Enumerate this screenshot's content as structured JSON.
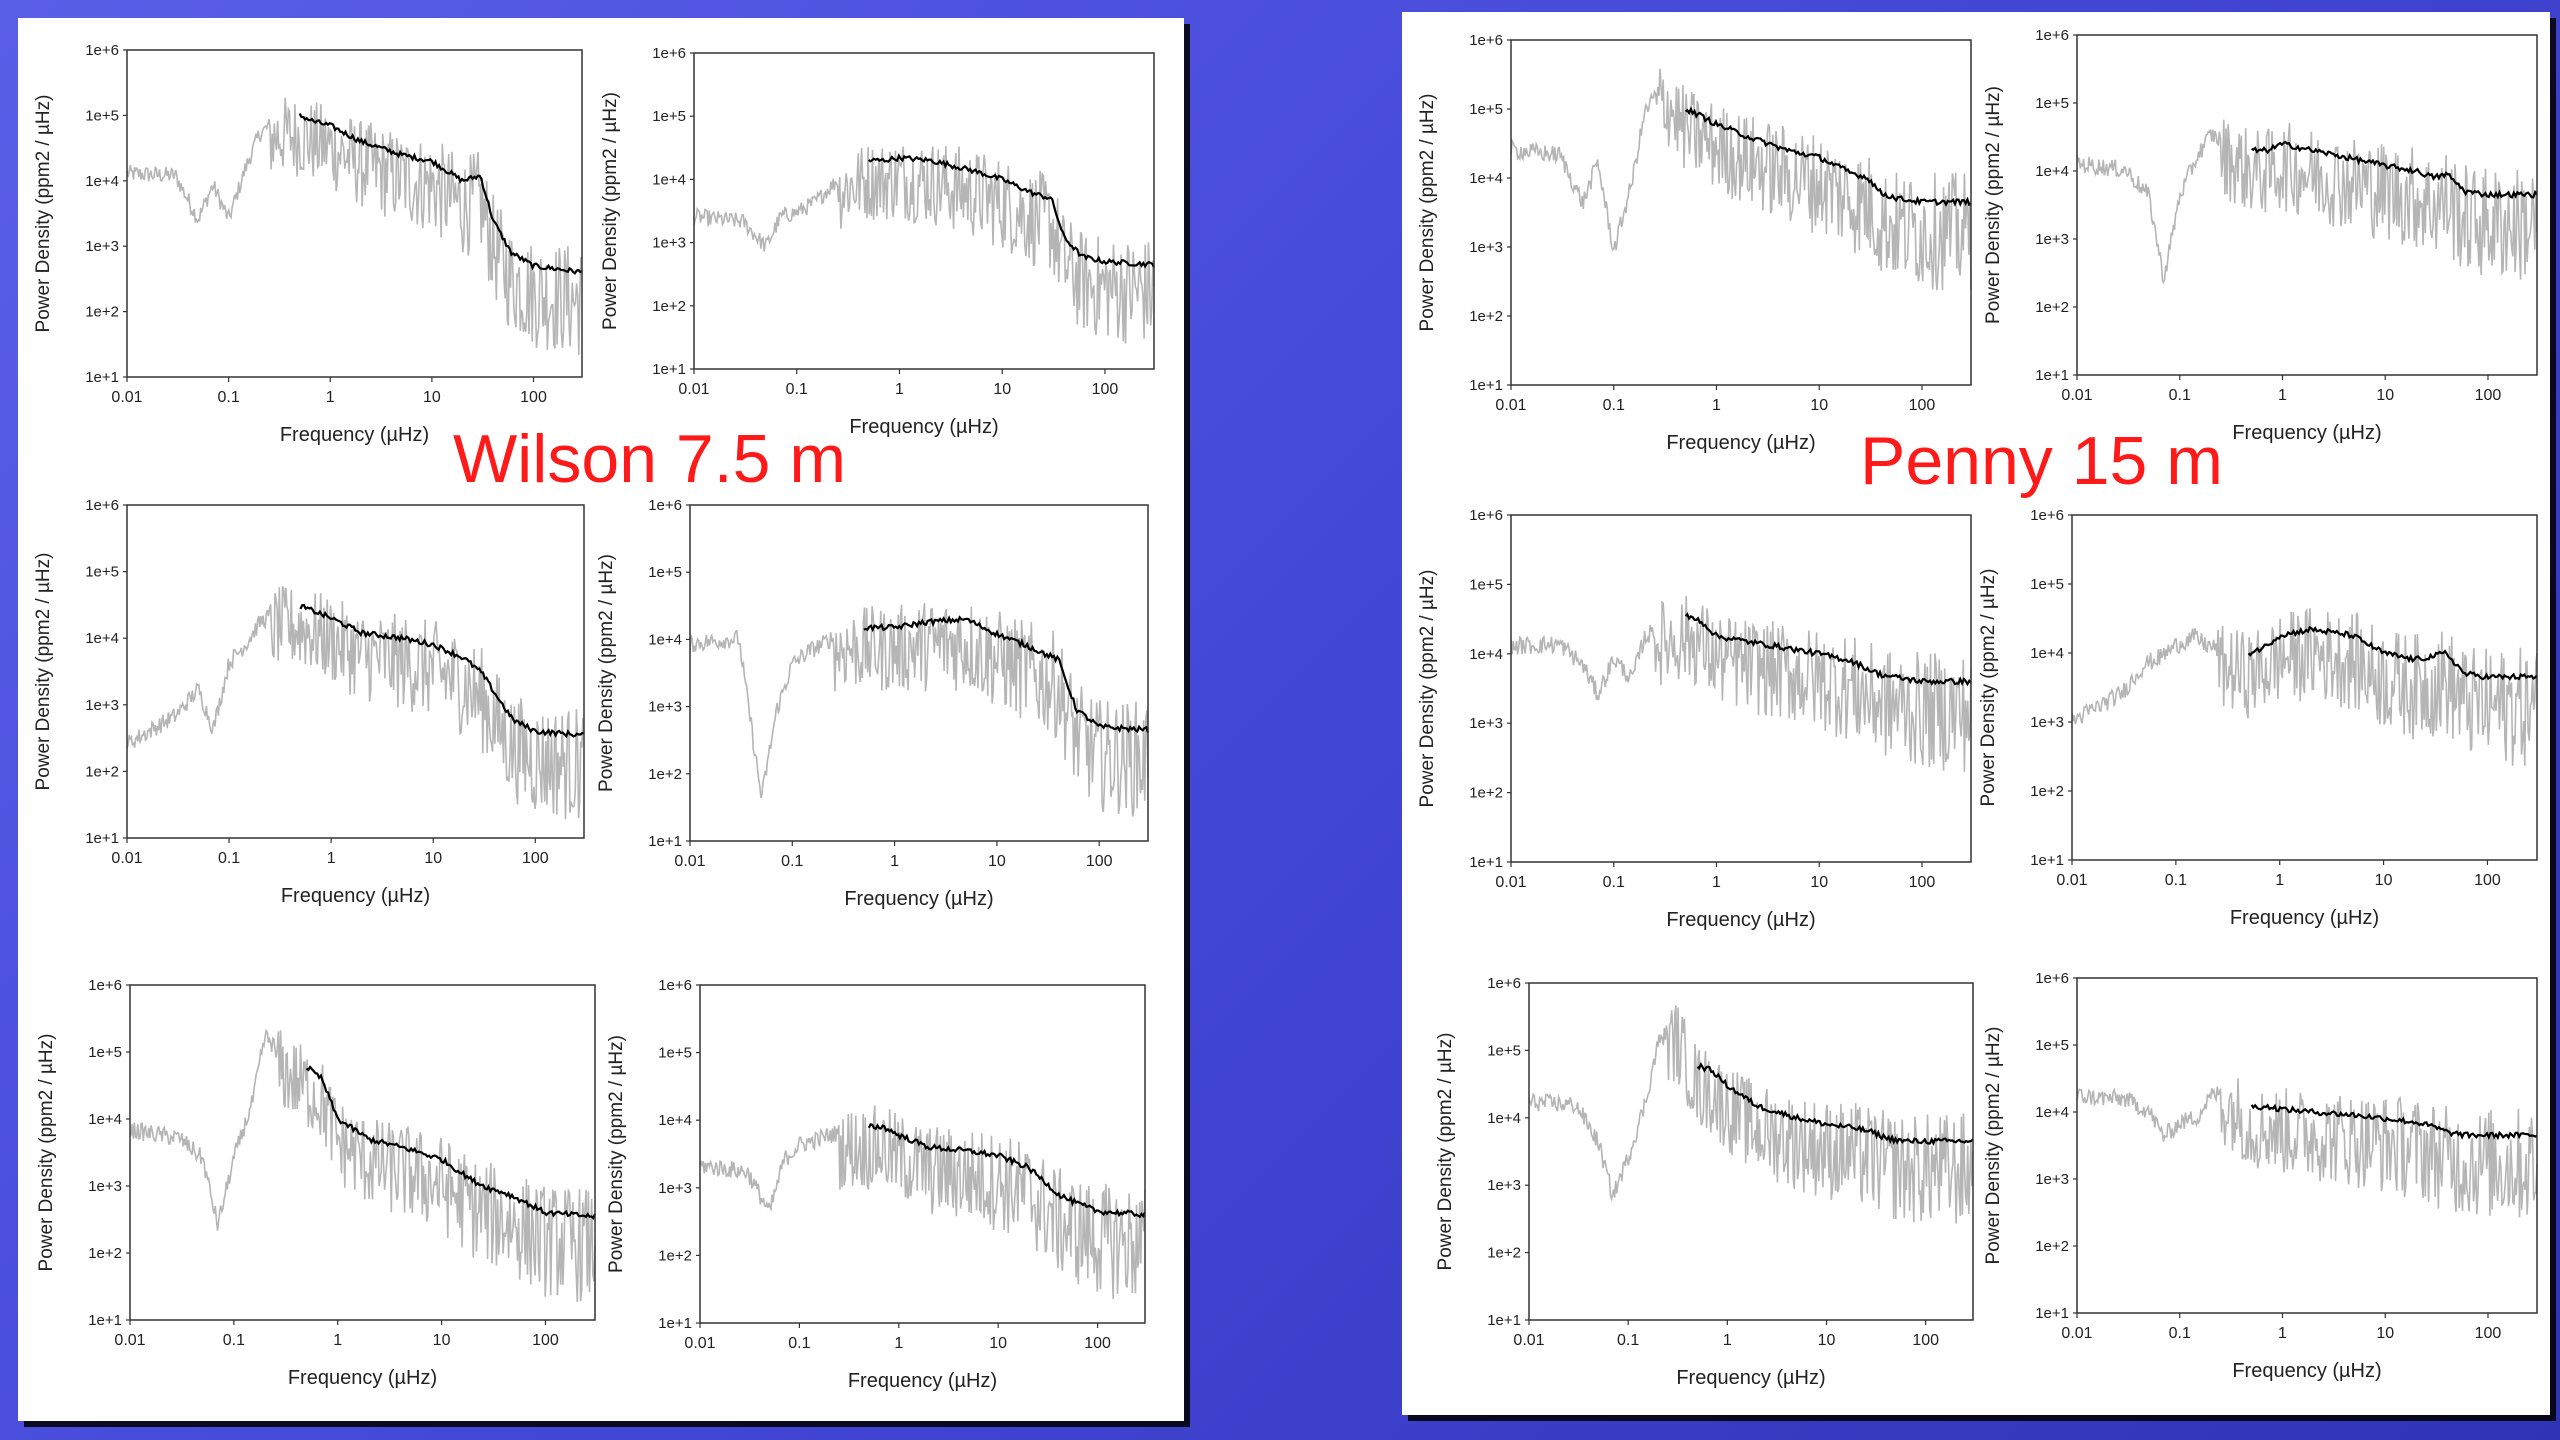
{
  "colors": {
    "background": "#4a4fe0",
    "panel": "#ffffff",
    "title": "#ff1a1a",
    "raw_spectrum": "#b5b5b5",
    "smoothed": "#000000"
  },
  "panels": [
    {
      "title": "Wilson 7.5 m"
    },
    {
      "title": "Penny 15 m"
    }
  ],
  "chart_data": [
    {
      "type": "line",
      "panel": "Wilson 7.5 m",
      "xlabel": "Frequency (µHz)",
      "ylabel": "Power Density (ppm2 / µHz)",
      "x_scale": "log",
      "y_scale": "log",
      "xlim": [
        0.01,
        300
      ],
      "ylim": [
        10.0,
        1000000.0
      ],
      "xticks": [
        "0.01",
        "0.1",
        "1",
        "10",
        "100"
      ],
      "yticks": [
        "1e+1",
        "1e+2",
        "1e+3",
        "1e+4",
        "1e+5",
        "1e+6"
      ],
      "series": [
        {
          "x": [
            0.01,
            0.03,
            0.05,
            0.07,
            0.1,
            0.15,
            0.2,
            0.3,
            0.5,
            0.7,
            1,
            2,
            5,
            10,
            20,
            30,
            40,
            60,
            100,
            300
          ],
          "values": [
            15000,
            14000,
            3000,
            10000,
            3000,
            20000,
            60000,
            100000,
            100000,
            80000,
            70000,
            40000,
            25000,
            20000,
            10000,
            12000,
            2500,
            800,
            500,
            400
          ]
        }
      ]
    },
    {
      "type": "line",
      "panel": "Wilson 7.5 m",
      "xlabel": "Frequency (µHz)",
      "ylabel": "Power Density (ppm2 / µHz)",
      "x_scale": "log",
      "y_scale": "log",
      "xlim": [
        0.01,
        300
      ],
      "ylim": [
        10.0,
        1000000.0
      ],
      "xticks": [
        "0.01",
        "0.1",
        "1",
        "10",
        "100"
      ],
      "yticks": [
        "1e+1",
        "1e+2",
        "1e+3",
        "1e+4",
        "1e+5",
        "1e+6"
      ],
      "series": [
        {
          "x": [
            0.01,
            0.03,
            0.05,
            0.07,
            0.1,
            0.15,
            0.2,
            0.3,
            0.5,
            0.7,
            1,
            2,
            5,
            10,
            20,
            30,
            40,
            60,
            100,
            300
          ],
          "values": [
            3000,
            2500,
            1000,
            3000,
            3500,
            5000,
            8000,
            15000,
            20000,
            20000,
            22000,
            20000,
            14000,
            10000,
            6000,
            5000,
            1200,
            600,
            500,
            450
          ]
        }
      ]
    },
    {
      "type": "line",
      "panel": "Wilson 7.5 m",
      "xlabel": "Frequency (µHz)",
      "ylabel": "Power Density (ppm2 / µHz)",
      "x_scale": "log",
      "y_scale": "log",
      "xlim": [
        0.01,
        300
      ],
      "ylim": [
        10.0,
        1000000.0
      ],
      "xticks": [
        "0.01",
        "0.1",
        "1",
        "10",
        "100"
      ],
      "yticks": [
        "1e+1",
        "1e+2",
        "1e+3",
        "1e+4",
        "1e+5",
        "1e+6"
      ],
      "series": [
        {
          "x": [
            0.01,
            0.03,
            0.05,
            0.07,
            0.1,
            0.15,
            0.2,
            0.3,
            0.5,
            0.7,
            1,
            2,
            5,
            10,
            20,
            30,
            40,
            60,
            100,
            300
          ],
          "values": [
            300,
            800,
            2000,
            500,
            5000,
            10000,
            20000,
            30000,
            30000,
            25000,
            20000,
            12000,
            10000,
            8000,
            5000,
            3000,
            1500,
            600,
            400,
            350
          ]
        }
      ]
    },
    {
      "type": "line",
      "panel": "Wilson 7.5 m",
      "xlabel": "Frequency (µHz)",
      "ylabel": "Power Density (ppm2 / µHz)",
      "x_scale": "log",
      "y_scale": "log",
      "xlim": [
        0.01,
        300
      ],
      "ylim": [
        10.0,
        1000000.0
      ],
      "xticks": [
        "0.01",
        "0.1",
        "1",
        "10",
        "100"
      ],
      "yticks": [
        "1e+1",
        "1e+2",
        "1e+3",
        "1e+4",
        "1e+5",
        "1e+6"
      ],
      "series": [
        {
          "x": [
            0.01,
            0.03,
            0.05,
            0.07,
            0.1,
            0.15,
            0.2,
            0.3,
            0.5,
            0.7,
            1,
            2,
            5,
            10,
            20,
            30,
            40,
            60,
            100,
            300
          ],
          "values": [
            10000,
            12000,
            50,
            1000,
            5000,
            8000,
            10000,
            15000,
            15000,
            15000,
            15000,
            18000,
            20000,
            12000,
            8000,
            6000,
            5000,
            900,
            500,
            450
          ]
        }
      ]
    },
    {
      "type": "line",
      "panel": "Wilson 7.5 m",
      "xlabel": "Frequency (µHz)",
      "ylabel": "Power Density (ppm2 / µHz)",
      "x_scale": "log",
      "y_scale": "log",
      "xlim": [
        0.01,
        300
      ],
      "ylim": [
        10.0,
        1000000.0
      ],
      "xticks": [
        "0.01",
        "0.1",
        "1",
        "10",
        "100"
      ],
      "yticks": [
        "1e+1",
        "1e+2",
        "1e+3",
        "1e+4",
        "1e+5",
        "1e+6"
      ],
      "series": [
        {
          "x": [
            0.01,
            0.03,
            0.05,
            0.07,
            0.1,
            0.15,
            0.2,
            0.3,
            0.5,
            0.7,
            1,
            2,
            5,
            10,
            20,
            30,
            40,
            60,
            100,
            300
          ],
          "values": [
            8000,
            6000,
            3000,
            300,
            3000,
            20000,
            200000,
            100000,
            60000,
            40000,
            10000,
            5000,
            3500,
            2500,
            1200,
            900,
            800,
            600,
            400,
            350
          ]
        }
      ]
    },
    {
      "type": "line",
      "panel": "Wilson 7.5 m",
      "xlabel": "Frequency (µHz)",
      "ylabel": "Power Density (ppm2 / µHz)",
      "x_scale": "log",
      "y_scale": "log",
      "xlim": [
        0.01,
        300
      ],
      "ylim": [
        10.0,
        1000000.0
      ],
      "xticks": [
        "0.01",
        "0.1",
        "1",
        "10",
        "100"
      ],
      "yticks": [
        "1e+1",
        "1e+2",
        "1e+3",
        "1e+4",
        "1e+5",
        "1e+6"
      ],
      "series": [
        {
          "x": [
            0.01,
            0.03,
            0.05,
            0.07,
            0.1,
            0.15,
            0.2,
            0.3,
            0.5,
            0.7,
            1,
            2,
            5,
            10,
            20,
            30,
            40,
            60,
            100,
            300
          ],
          "values": [
            2500,
            2000,
            500,
            3000,
            5000,
            6000,
            7000,
            8000,
            8000,
            8000,
            6000,
            4000,
            3500,
            3000,
            2000,
            1200,
            800,
            600,
            450,
            400
          ]
        }
      ]
    },
    {
      "type": "line",
      "panel": "Penny 15 m",
      "xlabel": "Frequency (µHz)",
      "ylabel": "Power Density (ppm2 / µHz)",
      "x_scale": "log",
      "y_scale": "log",
      "xlim": [
        0.01,
        300
      ],
      "ylim": [
        10.0,
        1000000.0
      ],
      "xticks": [
        "0.01",
        "0.1",
        "1",
        "10",
        "100"
      ],
      "yticks": [
        "1e+1",
        "1e+2",
        "1e+3",
        "1e+4",
        "1e+5",
        "1e+6"
      ],
      "series": [
        {
          "x": [
            0.01,
            0.03,
            0.05,
            0.07,
            0.1,
            0.15,
            0.2,
            0.3,
            0.5,
            0.7,
            1,
            2,
            5,
            10,
            20,
            30,
            40,
            60,
            100,
            300
          ],
          "values": [
            30000,
            25000,
            5000,
            20000,
            1000,
            10000,
            100000,
            300000,
            100000,
            80000,
            60000,
            40000,
            25000,
            20000,
            12000,
            10000,
            6000,
            5000,
            4500,
            4500
          ]
        }
      ]
    },
    {
      "type": "line",
      "panel": "Penny 15 m",
      "xlabel": "Frequency (µHz)",
      "ylabel": "Power Density (ppm2 / µHz)",
      "x_scale": "log",
      "y_scale": "log",
      "xlim": [
        0.01,
        300
      ],
      "ylim": [
        10.0,
        1000000.0
      ],
      "xticks": [
        "0.01",
        "0.1",
        "1",
        "10",
        "100"
      ],
      "yticks": [
        "1e+1",
        "1e+2",
        "1e+3",
        "1e+4",
        "1e+5",
        "1e+6"
      ],
      "series": [
        {
          "x": [
            0.01,
            0.03,
            0.05,
            0.07,
            0.1,
            0.15,
            0.2,
            0.3,
            0.5,
            0.7,
            1,
            2,
            5,
            10,
            20,
            30,
            40,
            60,
            100,
            300
          ],
          "values": [
            15000,
            12000,
            5000,
            300,
            5000,
            20000,
            40000,
            30000,
            20000,
            20000,
            25000,
            20000,
            15000,
            12000,
            10000,
            8000,
            9000,
            5000,
            4500,
            4500
          ]
        }
      ]
    },
    {
      "type": "line",
      "panel": "Penny 15 m",
      "xlabel": "Frequency (µHz)",
      "ylabel": "Power Density (ppm2 / µHz)",
      "x_scale": "log",
      "y_scale": "log",
      "xlim": [
        0.01,
        300
      ],
      "ylim": [
        10.0,
        1000000.0
      ],
      "xticks": [
        "0.01",
        "0.1",
        "1",
        "10",
        "100"
      ],
      "yticks": [
        "1e+1",
        "1e+2",
        "1e+3",
        "1e+4",
        "1e+5",
        "1e+6"
      ],
      "series": [
        {
          "x": [
            0.01,
            0.03,
            0.05,
            0.07,
            0.1,
            0.15,
            0.2,
            0.3,
            0.5,
            0.7,
            1,
            2,
            5,
            10,
            20,
            30,
            40,
            60,
            100,
            300
          ],
          "values": [
            15000,
            16000,
            8000,
            3000,
            10000,
            5000,
            20000,
            30000,
            35000,
            30000,
            18000,
            15000,
            12000,
            10000,
            8000,
            6000,
            5000,
            4500,
            4000,
            4000
          ]
        }
      ]
    },
    {
      "type": "line",
      "panel": "Penny 15 m",
      "xlabel": "Frequency (µHz)",
      "ylabel": "Power Density (ppm2 / µHz)",
      "x_scale": "log",
      "y_scale": "log",
      "xlim": [
        0.01,
        300
      ],
      "ylim": [
        10.0,
        1000000.0
      ],
      "xticks": [
        "0.01",
        "0.1",
        "1",
        "10",
        "100"
      ],
      "yticks": [
        "1e+1",
        "1e+2",
        "1e+3",
        "1e+4",
        "1e+5",
        "1e+6"
      ],
      "series": [
        {
          "x": [
            0.01,
            0.03,
            0.05,
            0.07,
            0.1,
            0.15,
            0.2,
            0.3,
            0.5,
            0.7,
            1,
            2,
            5,
            10,
            20,
            30,
            40,
            60,
            100,
            300
          ],
          "values": [
            1200,
            3000,
            8000,
            10000,
            15000,
            20000,
            15000,
            12000,
            10000,
            12000,
            18000,
            22000,
            18000,
            10000,
            8000,
            9000,
            10000,
            5000,
            4500,
            4500
          ]
        }
      ]
    },
    {
      "type": "line",
      "panel": "Penny 15 m",
      "xlabel": "Frequency (µHz)",
      "ylabel": "Power Density (ppm2 / µHz)",
      "x_scale": "log",
      "y_scale": "log",
      "xlim": [
        0.01,
        300
      ],
      "ylim": [
        10.0,
        1000000.0
      ],
      "xticks": [
        "0.01",
        "0.1",
        "1",
        "10",
        "100"
      ],
      "yticks": [
        "1e+1",
        "1e+2",
        "1e+3",
        "1e+4",
        "1e+5",
        "1e+6"
      ],
      "series": [
        {
          "x": [
            0.01,
            0.03,
            0.05,
            0.07,
            0.1,
            0.15,
            0.2,
            0.3,
            0.5,
            0.7,
            1,
            2,
            5,
            10,
            20,
            30,
            40,
            60,
            100,
            300
          ],
          "values": [
            20000,
            18000,
            5000,
            800,
            3000,
            20000,
            150000,
            300000,
            60000,
            50000,
            30000,
            15000,
            10000,
            8000,
            7000,
            6000,
            5000,
            4500,
            4500,
            4500
          ]
        }
      ]
    },
    {
      "type": "line",
      "panel": "Penny 15 m",
      "xlabel": "Frequency (µHz)",
      "ylabel": "Power Density (ppm2 / µHz)",
      "x_scale": "log",
      "y_scale": "log",
      "xlim": [
        0.01,
        300
      ],
      "ylim": [
        10.0,
        1000000.0
      ],
      "xticks": [
        "0.01",
        "0.1",
        "1",
        "10",
        "100"
      ],
      "yticks": [
        "1e+1",
        "1e+2",
        "1e+3",
        "1e+4",
        "1e+5",
        "1e+6"
      ],
      "series": [
        {
          "x": [
            0.01,
            0.03,
            0.05,
            0.07,
            0.1,
            0.15,
            0.2,
            0.3,
            0.5,
            0.7,
            1,
            2,
            5,
            10,
            20,
            30,
            40,
            60,
            100,
            300
          ],
          "values": [
            20000,
            18000,
            12000,
            5000,
            8000,
            10000,
            20000,
            25000,
            12000,
            12000,
            11000,
            10000,
            9000,
            8000,
            7000,
            6000,
            5000,
            4500,
            4500,
            4500
          ]
        }
      ]
    }
  ]
}
